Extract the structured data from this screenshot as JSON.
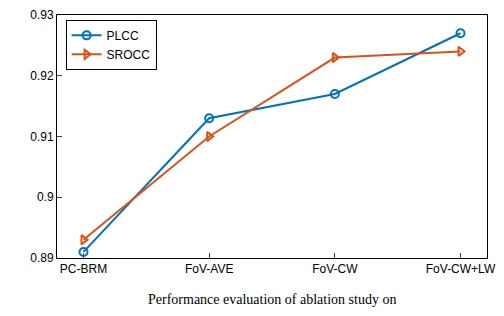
{
  "chart_data": {
    "type": "line",
    "categories": [
      "PC-BRM",
      "FoV-AVE",
      "FoV-CW",
      "FoV-CW+LW"
    ],
    "series": [
      {
        "name": "PLCC",
        "color": "#0072bd",
        "marker": "circle-open",
        "values": [
          0.891,
          0.913,
          0.917,
          0.927
        ]
      },
      {
        "name": "SROCC",
        "color": "#d95319",
        "marker": "triangle-right-open",
        "values": [
          0.893,
          0.91,
          0.923,
          0.924
        ]
      }
    ],
    "ylim": [
      0.89,
      0.93
    ],
    "yticks": [
      0.89,
      0.9,
      0.91,
      0.92,
      0.93
    ],
    "grid": false,
    "legend": "upper left",
    "annotations": [
      "Performance evaluation of ablation study on"
    ]
  }
}
